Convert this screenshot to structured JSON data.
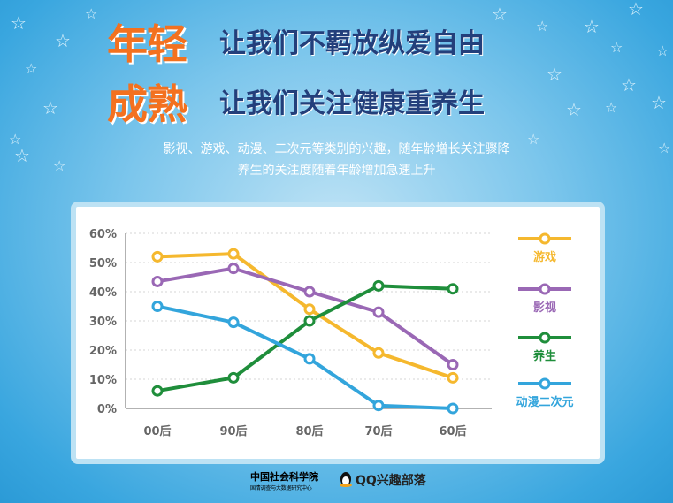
{
  "headline": {
    "line1_big": "年轻",
    "line1_sub": "让我们不羁放纵爱自由",
    "line2_big": "成熟",
    "line2_sub": "让我们关注健康重养生"
  },
  "description": {
    "line1": "影视、游戏、动漫、二次元等类别的兴趣，随年龄增长关注骤降",
    "line2": "养生的关注度随着年龄增加急速上升"
  },
  "footer": {
    "org_name": "中国社会科学院",
    "org_sub": "国情调查与大数据研究中心",
    "brand": "QQ兴趣部落"
  },
  "chart_data": {
    "type": "line",
    "categories": [
      "00后",
      "90后",
      "80后",
      "70后",
      "60后"
    ],
    "ylim": [
      0,
      60
    ],
    "yticks": [
      "0%",
      "10%",
      "20%",
      "30%",
      "40%",
      "50%",
      "60%"
    ],
    "grid": true,
    "legend_position": "right",
    "series": [
      {
        "name": "游戏",
        "color": "#f5b82e",
        "values": [
          52,
          53,
          34,
          19,
          10.5
        ]
      },
      {
        "name": "影视",
        "color": "#9a68b5",
        "values": [
          43.5,
          48,
          40,
          33,
          15
        ]
      },
      {
        "name": "养生",
        "color": "#1f8e3b",
        "values": [
          6,
          10.5,
          30,
          42,
          41
        ]
      },
      {
        "name": "动漫二次元",
        "color": "#33a5dc",
        "values": [
          35,
          29.5,
          17,
          1,
          0
        ]
      }
    ]
  },
  "colors": {
    "accent_orange": "#f3711f",
    "headline_blue": "#233f7b"
  }
}
